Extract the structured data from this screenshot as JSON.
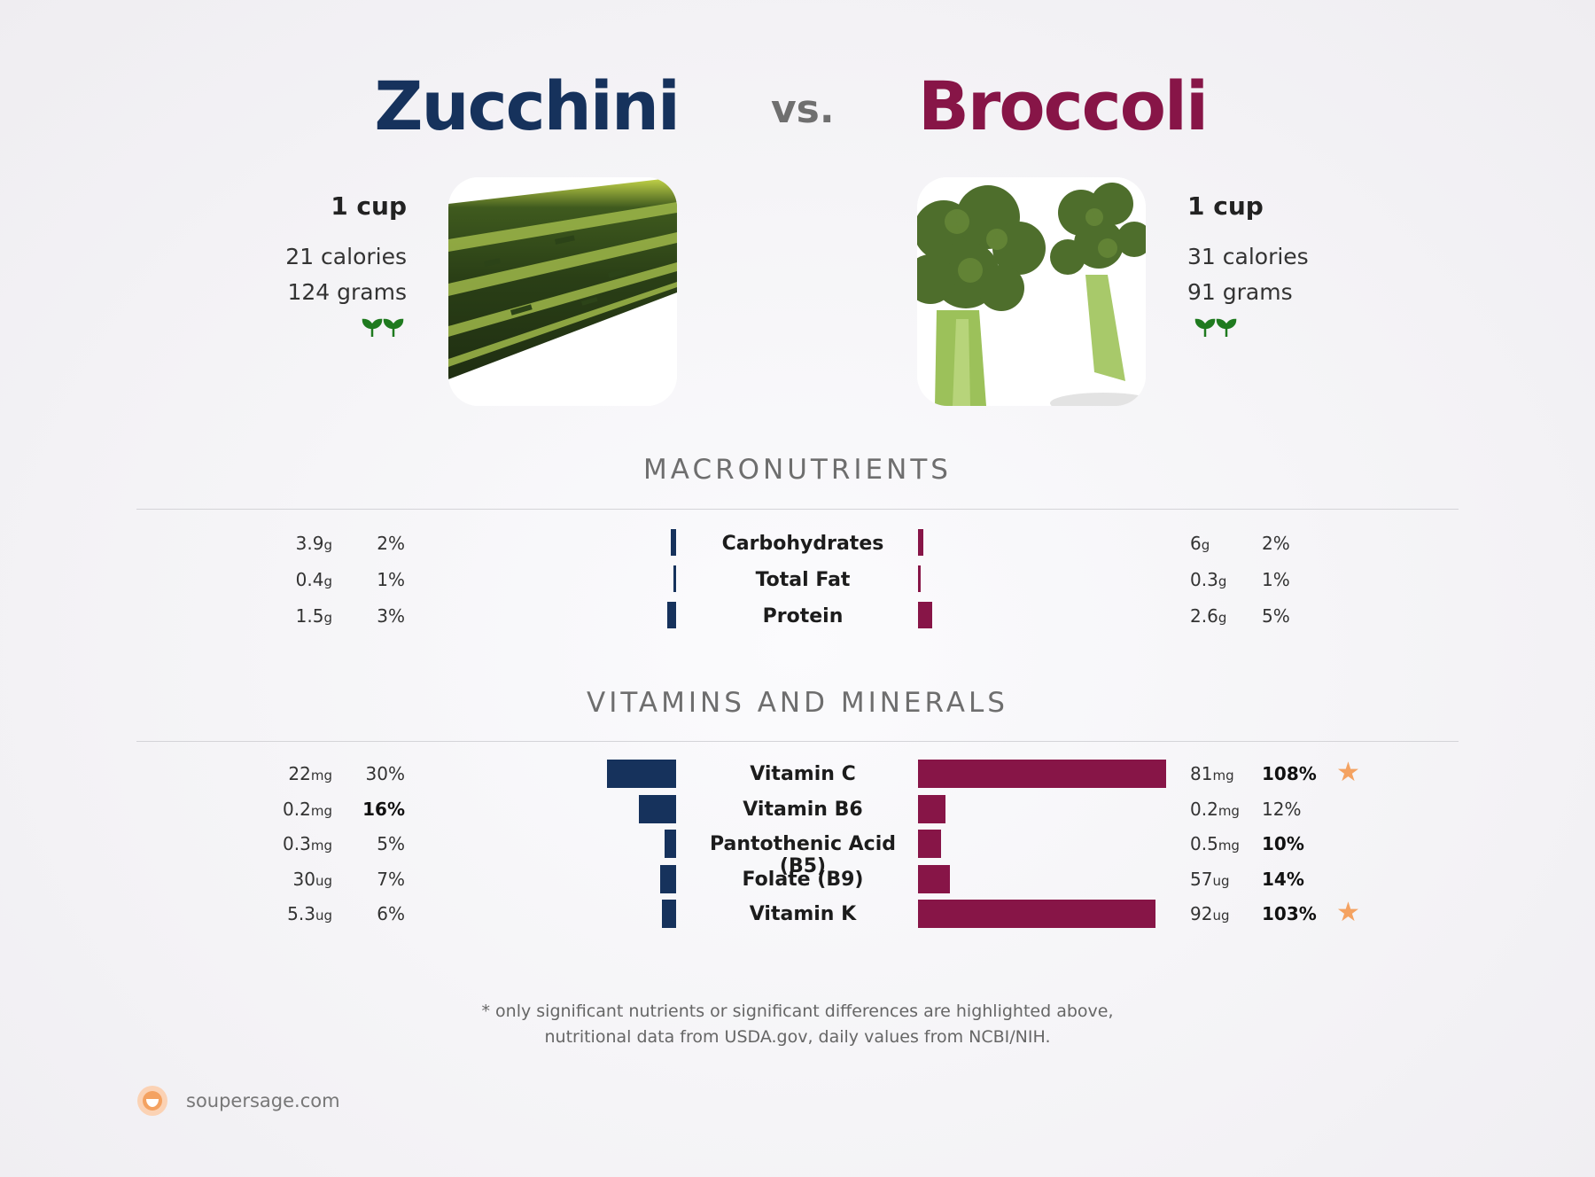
{
  "header": {
    "left_name": "Zucchini",
    "vs": "vs.",
    "right_name": "Broccoli",
    "left_color": "#16325c",
    "right_color": "#871547"
  },
  "left_item": {
    "serving": "1 cup",
    "calories": "21 calories",
    "grams": "124 grams",
    "icon": "leaf-sprout-icon"
  },
  "right_item": {
    "serving": "1 cup",
    "calories": "31 calories",
    "grams": "91 grams",
    "icon": "leaf-sprout-icon"
  },
  "sections": {
    "macros_title": "MACRONUTRIENTS",
    "vitamins_title": "VITAMINS AND MINERALS"
  },
  "chart_data": [
    {
      "type": "bar",
      "title": "MACRONUTRIENTS",
      "categories": [
        "Carbohydrates",
        "Total Fat",
        "Protein"
      ],
      "series": [
        {
          "name": "Zucchini",
          "amounts": [
            "3.9",
            "0.4",
            "1.5"
          ],
          "units": [
            "g",
            "g",
            "g"
          ],
          "percent_labels": [
            "2%",
            "1%",
            "3%"
          ],
          "values": [
            2,
            1,
            3
          ],
          "bold": [
            false,
            false,
            false
          ]
        },
        {
          "name": "Broccoli",
          "amounts": [
            "6",
            "0.3",
            "2.6"
          ],
          "units": [
            "g",
            "g",
            "g"
          ],
          "percent_labels": [
            "2%",
            "1%",
            "5%"
          ],
          "values": [
            2,
            1,
            5
          ],
          "bold": [
            false,
            false,
            false
          ]
        }
      ],
      "stars": [
        false,
        false,
        false
      ]
    },
    {
      "type": "bar",
      "title": "VITAMINS AND MINERALS",
      "categories": [
        "Vitamin C",
        "Vitamin B6",
        "Pantothenic Acid (B5)",
        "Folate (B9)",
        "Vitamin K"
      ],
      "series": [
        {
          "name": "Zucchini",
          "amounts": [
            "22",
            "0.2",
            "0.3",
            "30",
            "5.3"
          ],
          "units": [
            "mg",
            "mg",
            "mg",
            "ug",
            "ug"
          ],
          "percent_labels": [
            "30%",
            "16%",
            "5%",
            "7%",
            "6%"
          ],
          "values": [
            30,
            16,
            5,
            7,
            6
          ],
          "bold": [
            false,
            true,
            false,
            false,
            false
          ]
        },
        {
          "name": "Broccoli",
          "amounts": [
            "81",
            "0.2",
            "0.5",
            "57",
            "92"
          ],
          "units": [
            "mg",
            "mg",
            "mg",
            "ug",
            "ug"
          ],
          "percent_labels": [
            "108%",
            "12%",
            "10%",
            "14%",
            "103%"
          ],
          "values": [
            108,
            12,
            10,
            14,
            103
          ],
          "bold": [
            true,
            false,
            true,
            true,
            true
          ]
        }
      ],
      "stars": [
        true,
        false,
        false,
        false,
        true
      ]
    }
  ],
  "footer": {
    "line1": "* only significant nutrients or significant differences are highlighted above,",
    "line2": "nutritional data from USDA.gov, daily values from NCBI/NIH.",
    "brand": "soupersage.com"
  }
}
